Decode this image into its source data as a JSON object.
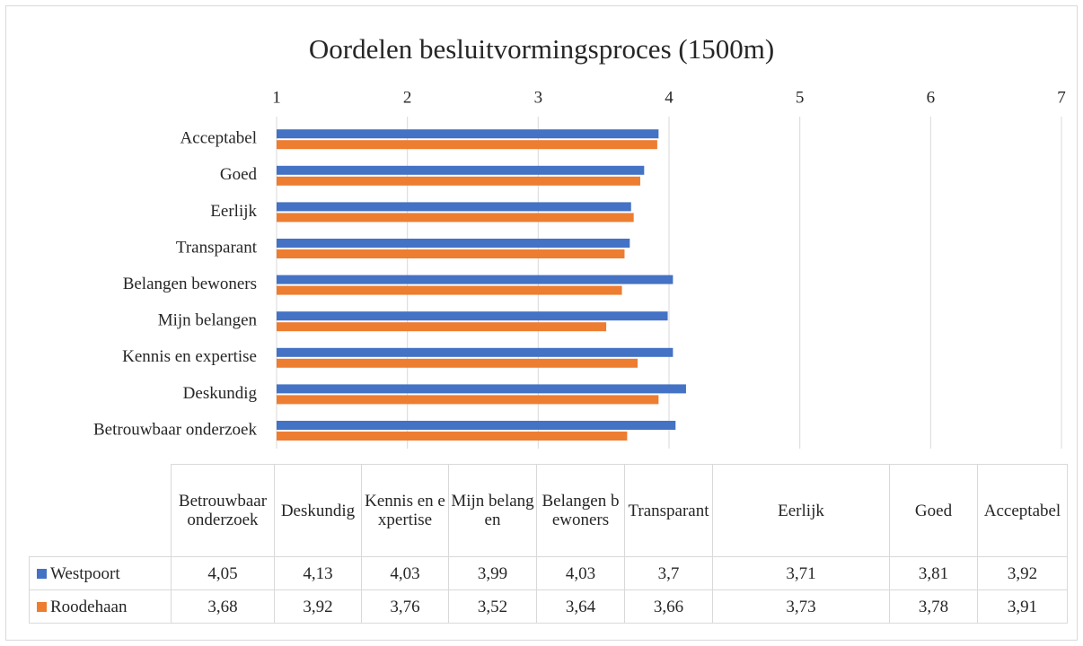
{
  "chart_data": {
    "type": "bar",
    "orientation": "horizontal",
    "title": "Oordelen besluitvormingsproces (1500m)",
    "categories": [
      "Betrouwbaar onderzoek",
      "Deskundig",
      "Kennis en expertise",
      "Mijn belangen",
      "Belangen bewoners",
      "Transparant",
      "Eerlijk",
      "Goed",
      "Acceptabel"
    ],
    "series": [
      {
        "name": "Westpoort",
        "color": "#4472c4",
        "values": [
          4.05,
          4.13,
          4.03,
          3.99,
          4.03,
          3.7,
          3.71,
          3.81,
          3.92
        ],
        "value_labels": [
          "4,05",
          "4,13",
          "4,03",
          "3,99",
          "4,03",
          "3,7",
          "3,71",
          "3,81",
          "3,92"
        ]
      },
      {
        "name": "Roodehaan",
        "color": "#ed7d31",
        "values": [
          3.68,
          3.92,
          3.76,
          3.52,
          3.64,
          3.66,
          3.73,
          3.78,
          3.91
        ],
        "value_labels": [
          "3,68",
          "3,92",
          "3,76",
          "3,52",
          "3,64",
          "3,66",
          "3,73",
          "3,78",
          "3,91"
        ]
      }
    ],
    "xlim": [
      1,
      7
    ],
    "xticks": [
      1,
      2,
      3,
      4,
      5,
      6,
      7
    ],
    "grid": true,
    "data_table": true
  }
}
